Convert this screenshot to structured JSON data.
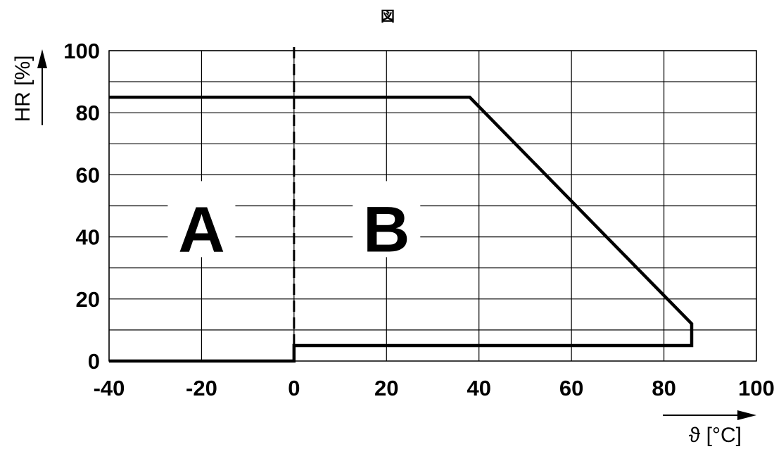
{
  "chart_data": {
    "type": "line",
    "title": "図",
    "xlabel": "ϑ [°C]",
    "ylabel": "HR [%]",
    "xlim": [
      -40,
      100
    ],
    "ylim": [
      0,
      100
    ],
    "x_ticks": [
      -40,
      -20,
      0,
      20,
      40,
      60,
      80,
      100
    ],
    "y_ticks": [
      0,
      20,
      40,
      60,
      80,
      100
    ],
    "x_tick_labels": [
      "-40",
      "-20",
      "0",
      "20",
      "40",
      "60",
      "80",
      "100"
    ],
    "y_tick_labels": [
      "0",
      "20",
      "40",
      "60",
      "80",
      "100"
    ],
    "grid": true,
    "x_minor_gridlines": [
      -40,
      -20,
      0,
      20,
      40,
      60,
      80,
      100
    ],
    "y_gridlines": [
      10,
      20,
      30,
      40,
      50,
      60,
      70,
      80,
      90,
      100
    ],
    "series": [
      {
        "points": [
          [
            -40,
            85
          ],
          [
            38,
            85
          ],
          [
            86,
            12
          ],
          [
            86,
            5
          ],
          [
            0,
            5
          ],
          [
            0,
            0
          ],
          [
            -40,
            0
          ]
        ]
      }
    ],
    "reference_lines": [
      {
        "axis": "x",
        "value": 0,
        "style": "dashed"
      }
    ],
    "regions": [
      {
        "label": "A",
        "x_center": -20,
        "y_center": 43
      },
      {
        "label": "B",
        "x_center": 20,
        "y_center": 43
      }
    ]
  }
}
